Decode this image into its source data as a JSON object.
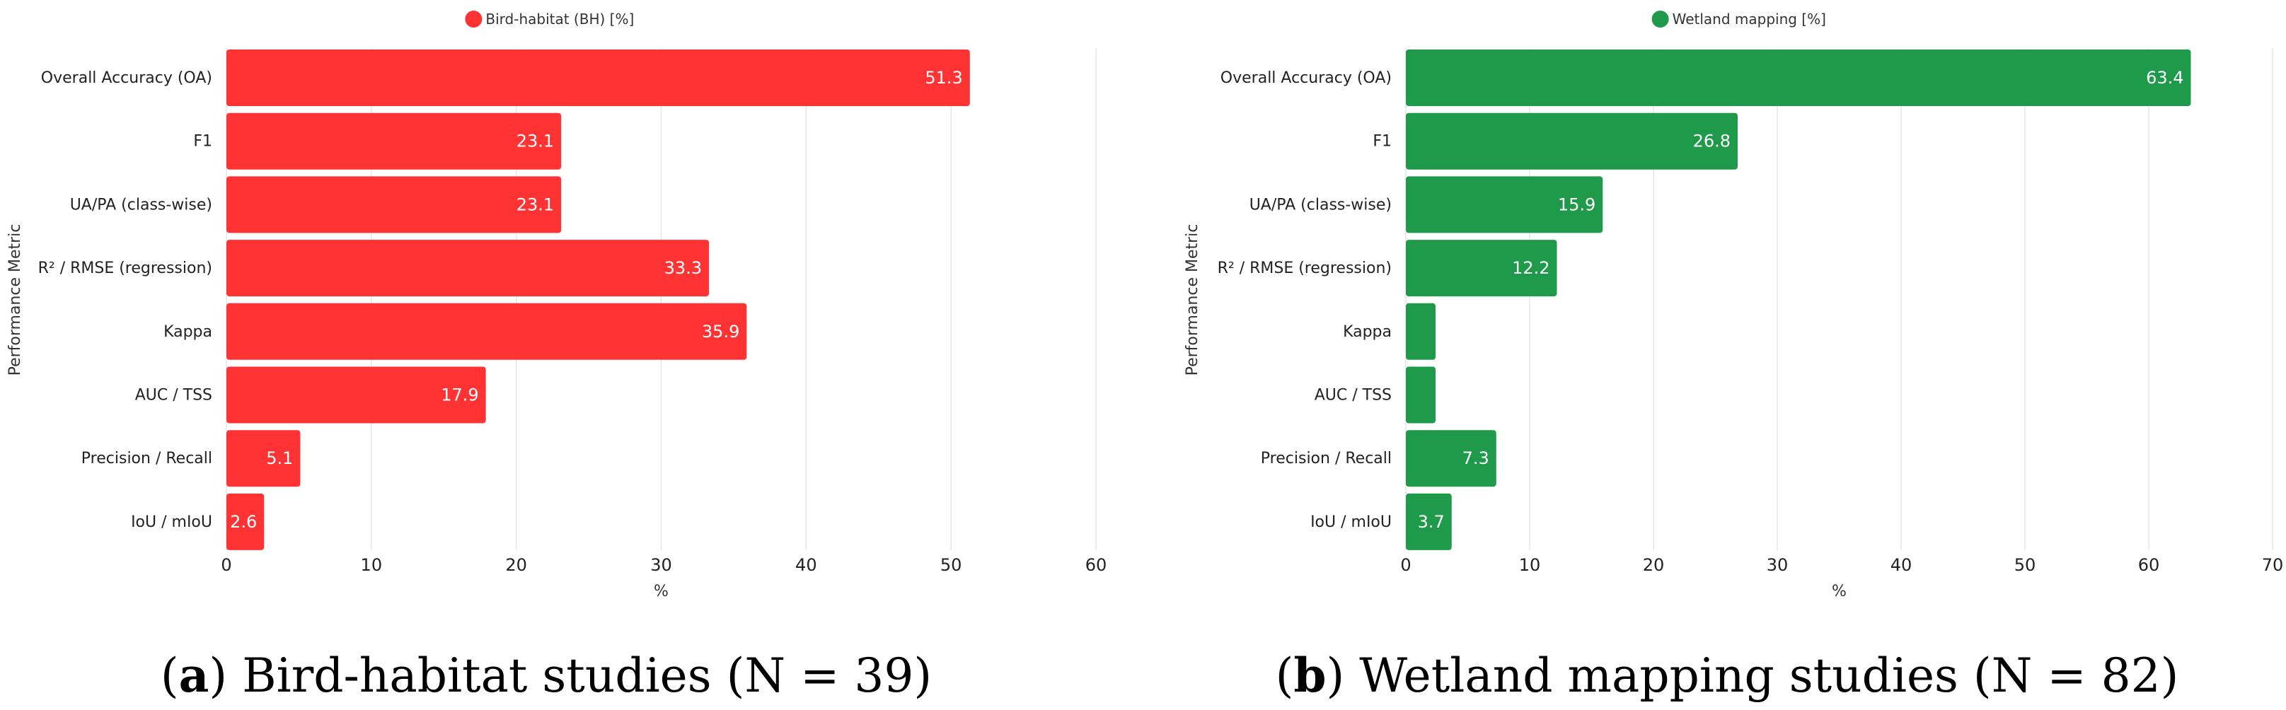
{
  "chart_data": [
    {
      "type": "bar",
      "orientation": "horizontal",
      "legend": "Bird-habitat (BH) [%]",
      "color": "#FF3333",
      "xlabel": "%",
      "ylabel": "Performance Metric",
      "xlim": [
        0,
        60
      ],
      "xticks": [
        0,
        10,
        20,
        30,
        40,
        50,
        60
      ],
      "grid": true,
      "categories": [
        "Overall Accuracy (OA)",
        "F1",
        "UA/PA (class-wise)",
        "R² / RMSE (regression)",
        "Kappa",
        "AUC / TSS",
        "Precision / Recall",
        "IoU / mIoU"
      ],
      "values": [
        51.3,
        23.1,
        23.1,
        33.3,
        35.9,
        17.9,
        5.1,
        2.6
      ],
      "data_labels": [
        "51.3",
        "23.1",
        "23.1",
        "33.3",
        "35.9",
        "17.9",
        "5.1",
        "2.6"
      ],
      "caption_letter": "a",
      "caption_text": " Bird-habitat studies (N = 39)"
    },
    {
      "type": "bar",
      "orientation": "horizontal",
      "legend": "Wetland mapping [%]",
      "color": "#1E9A4A",
      "xlabel": "%",
      "ylabel": "Performance Metric",
      "xlim": [
        0,
        70
      ],
      "xticks": [
        0,
        10,
        20,
        30,
        40,
        50,
        60,
        70
      ],
      "grid": true,
      "categories": [
        "Overall Accuracy (OA)",
        "F1",
        "UA/PA (class-wise)",
        "R² / RMSE (regression)",
        "Kappa",
        "AUC / TSS",
        "Precision / Recall",
        "IoU / mIoU"
      ],
      "values": [
        63.4,
        26.8,
        15.9,
        12.2,
        2.4,
        2.4,
        7.3,
        3.7
      ],
      "data_labels": [
        "63.4",
        "26.8",
        "15.9",
        "12.2",
        "",
        "",
        "7.3",
        "3.7"
      ],
      "caption_letter": "b",
      "caption_text": " Wetland mapping studies (N = 82)"
    }
  ]
}
